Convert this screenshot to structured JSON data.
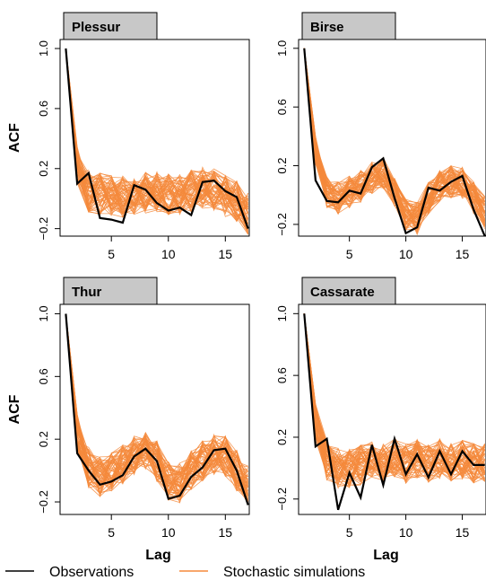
{
  "colors": {
    "observations": "#000000",
    "simulations": "#f58a3c",
    "strip": "#c8c8c8"
  },
  "legend": {
    "observations": "Observations",
    "simulations": "Stochastic simulations"
  },
  "chart_data": [
    {
      "type": "line",
      "title": "Plessur",
      "xlabel": "",
      "ylabel": "ACF",
      "x": [
        1,
        2,
        3,
        4,
        5,
        6,
        7,
        8,
        9,
        10,
        11,
        12,
        13,
        14,
        15,
        16,
        17
      ],
      "xlim": [
        0.5,
        17.1
      ],
      "ylim": [
        -0.25,
        1.06
      ],
      "xticks": [
        5,
        10,
        15
      ],
      "yticks": [
        -0.2,
        0.2,
        0.6,
        1.0
      ],
      "ytick_labels": [
        "−0.2",
        "0.2",
        "0.6",
        "1.0"
      ],
      "observations": [
        1.0,
        0.1,
        0.17,
        -0.13,
        -0.14,
        -0.16,
        0.09,
        0.06,
        -0.03,
        -0.08,
        -0.06,
        -0.11,
        0.11,
        0.12,
        0.05,
        0.01,
        -0.2
      ],
      "simulation_mean": [
        1.0,
        0.22,
        0.05,
        0.03,
        0.02,
        0.01,
        0.03,
        0.04,
        0.04,
        0.03,
        0.02,
        0.05,
        0.07,
        0.06,
        0.02,
        -0.02,
        -0.1
      ],
      "simulation_spread": 0.14,
      "simulation_count": 60
    },
    {
      "type": "line",
      "title": "Birse",
      "xlabel": "",
      "ylabel": "",
      "x": [
        1,
        2,
        3,
        4,
        5,
        6,
        7,
        8,
        9,
        10,
        11,
        12,
        13,
        14,
        15,
        16,
        17
      ],
      "xlim": [
        0.5,
        17.1
      ],
      "ylim": [
        -0.28,
        1.06
      ],
      "xticks": [
        5,
        10,
        15
      ],
      "yticks": [
        -0.2,
        0.2,
        0.6,
        1.0
      ],
      "ytick_labels": [
        "−0.2",
        "0.2",
        "0.6",
        "1.0"
      ],
      "observations": [
        1.0,
        0.1,
        -0.04,
        -0.05,
        0.03,
        0.01,
        0.19,
        0.25,
        -0.02,
        -0.26,
        -0.22,
        0.05,
        0.03,
        0.09,
        0.13,
        -0.1,
        -0.28
      ],
      "simulation_mean": [
        1.0,
        0.3,
        0.02,
        -0.02,
        0.02,
        0.06,
        0.12,
        0.15,
        0.02,
        -0.13,
        -0.16,
        -0.02,
        0.06,
        0.09,
        0.08,
        -0.02,
        -0.12
      ],
      "simulation_spread": 0.11,
      "simulation_count": 60
    },
    {
      "type": "line",
      "title": "Thur",
      "xlabel": "Lag",
      "ylabel": "ACF",
      "x": [
        1,
        2,
        3,
        4,
        5,
        6,
        7,
        8,
        9,
        10,
        11,
        12,
        13,
        14,
        15,
        16,
        17
      ],
      "xlim": [
        0.5,
        17.1
      ],
      "ylim": [
        -0.28,
        1.06
      ],
      "xticks": [
        5,
        10,
        15
      ],
      "yticks": [
        -0.2,
        0.2,
        0.6,
        1.0
      ],
      "ytick_labels": [
        "−0.2",
        "0.2",
        "0.6",
        "1.0"
      ],
      "observations": [
        1.0,
        0.11,
        0.0,
        -0.09,
        -0.07,
        -0.03,
        0.09,
        0.14,
        0.06,
        -0.18,
        -0.16,
        -0.04,
        0.02,
        0.13,
        0.14,
        0.0,
        -0.22
      ],
      "simulation_mean": [
        1.0,
        0.25,
        0.02,
        -0.04,
        0.0,
        0.04,
        0.1,
        0.12,
        0.06,
        -0.06,
        -0.08,
        0.0,
        0.06,
        0.1,
        0.09,
        0.0,
        -0.1
      ],
      "simulation_spread": 0.13,
      "simulation_count": 60
    },
    {
      "type": "line",
      "title": "Cassarate",
      "xlabel": "Lag",
      "ylabel": "",
      "x": [
        1,
        2,
        3,
        4,
        5,
        6,
        7,
        8,
        9,
        10,
        11,
        12,
        13,
        14,
        15,
        16,
        17
      ],
      "xlim": [
        0.5,
        17.1
      ],
      "ylim": [
        -0.3,
        1.06
      ],
      "xticks": [
        5,
        10,
        15
      ],
      "yticks": [
        -0.2,
        0.2,
        0.6,
        1.0
      ],
      "ytick_labels": [
        "−0.2",
        "0.2",
        "0.6",
        "1.0"
      ],
      "observations": [
        1.0,
        0.14,
        0.19,
        -0.27,
        -0.03,
        -0.19,
        0.15,
        -0.11,
        0.19,
        -0.04,
        0.09,
        -0.06,
        0.11,
        -0.04,
        0.11,
        0.02,
        0.02
      ],
      "simulation_mean": [
        1.0,
        0.3,
        0.05,
        0.0,
        0.0,
        0.02,
        0.05,
        0.03,
        0.07,
        0.03,
        0.06,
        0.03,
        0.06,
        0.03,
        0.05,
        0.03,
        0.04
      ],
      "simulation_spread": 0.13,
      "simulation_count": 60
    }
  ]
}
